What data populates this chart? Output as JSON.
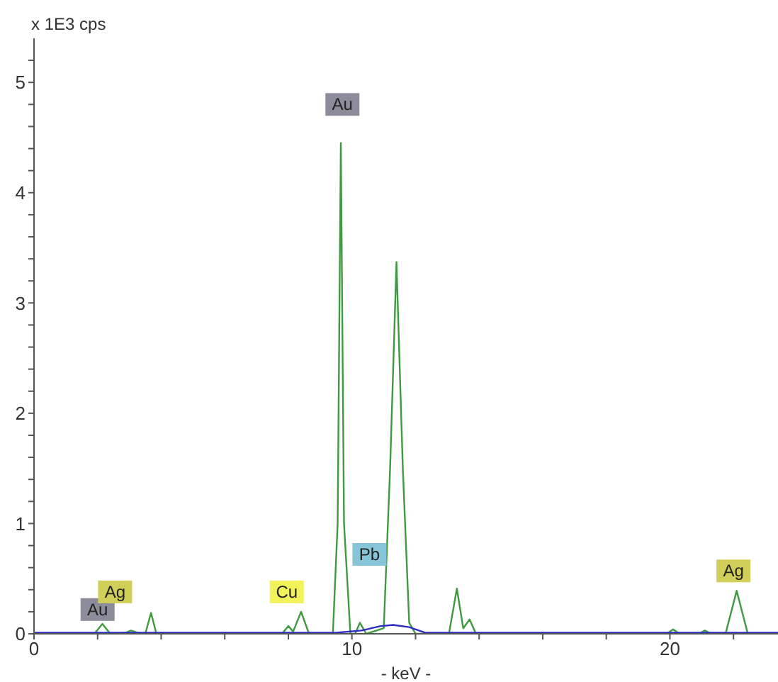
{
  "chart_data": {
    "type": "line",
    "ylabel": "x 1E3 cps",
    "xlabel": "- keV -",
    "xlim": [
      0,
      23.4
    ],
    "ylim": [
      0,
      5.4
    ],
    "xticks": [
      0,
      {
        "value": 2,
        "label": null
      },
      {
        "value": 4,
        "label": null
      },
      {
        "value": 6,
        "label": null
      },
      {
        "value": 8,
        "label": null
      },
      10,
      {
        "value": 12,
        "label": null
      },
      {
        "value": 14,
        "label": null
      },
      {
        "value": 16,
        "label": null
      },
      {
        "value": 18,
        "label": null
      },
      20,
      {
        "value": 22,
        "label": null
      }
    ],
    "yticks": [
      0,
      {
        "value": 0.2,
        "label": null
      },
      {
        "value": 0.4,
        "label": null
      },
      {
        "value": 0.6,
        "label": null
      },
      {
        "value": 0.8,
        "label": null
      },
      1,
      {
        "value": 1.2,
        "label": null
      },
      {
        "value": 1.4,
        "label": null
      },
      {
        "value": 1.6,
        "label": null
      },
      {
        "value": 1.8,
        "label": null
      },
      2,
      {
        "value": 2.2,
        "label": null
      },
      {
        "value": 2.4,
        "label": null
      },
      {
        "value": 2.6,
        "label": null
      },
      {
        "value": 2.8,
        "label": null
      },
      3,
      {
        "value": 3.2,
        "label": null
      },
      {
        "value": 3.4,
        "label": null
      },
      {
        "value": 3.6,
        "label": null
      },
      {
        "value": 3.8,
        "label": null
      },
      4,
      {
        "value": 4.2,
        "label": null
      },
      {
        "value": 4.4,
        "label": null
      },
      {
        "value": 4.6,
        "label": null
      },
      {
        "value": 4.8,
        "label": null
      },
      5,
      {
        "value": 5.2,
        "label": null
      }
    ],
    "marker": "none",
    "line_style": "solid",
    "series": [
      {
        "color": "#3f9a3f",
        "x": [
          0,
          1.9,
          2.15,
          2.4,
          2.9,
          3.05,
          3.25,
          3.5,
          3.68,
          3.85,
          7.8,
          8.0,
          8.15,
          8.4,
          8.65,
          9.4,
          9.55,
          9.65,
          9.75,
          9.95,
          10.1,
          10.25,
          10.45,
          11.0,
          11.2,
          11.4,
          11.6,
          11.8,
          12.0,
          13.05,
          13.3,
          13.5,
          13.7,
          13.9,
          19.9,
          20.1,
          20.3,
          20.9,
          21.1,
          21.3,
          21.75,
          22.1,
          22.45,
          23.4
        ],
        "values": [
          0,
          0,
          0.09,
          0,
          0.01,
          0.03,
          0.01,
          0,
          0.19,
          0,
          0,
          0.07,
          0.02,
          0.2,
          0,
          0,
          1.0,
          4.45,
          1.0,
          0,
          0,
          0.1,
          0,
          0.05,
          1.5,
          3.37,
          1.5,
          0.1,
          0,
          0,
          0.41,
          0.05,
          0.13,
          0,
          0,
          0.04,
          0,
          0,
          0.03,
          0,
          0,
          0.39,
          0,
          0
        ]
      },
      {
        "color": "#2b2bc4",
        "x": [
          0,
          9.5,
          10.3,
          10.9,
          11.3,
          11.8,
          12.3,
          13.0,
          23.4
        ],
        "values": [
          0.01,
          0.01,
          0.03,
          0.07,
          0.08,
          0.06,
          0.01,
          0.01,
          0.01
        ]
      }
    ],
    "annotations": [
      {
        "text": "Au",
        "x": 9.7,
        "y": 4.8
      },
      {
        "text": "Au",
        "x": 2.0,
        "y": 0.22
      },
      {
        "text": "Ag",
        "x": 2.55,
        "y": 0.38
      },
      {
        "text": "Cu",
        "x": 7.95,
        "y": 0.38
      },
      {
        "text": "Pb",
        "x": 10.55,
        "y": 0.72
      },
      {
        "text": "Ag",
        "x": 22.0,
        "y": 0.57
      }
    ]
  }
}
